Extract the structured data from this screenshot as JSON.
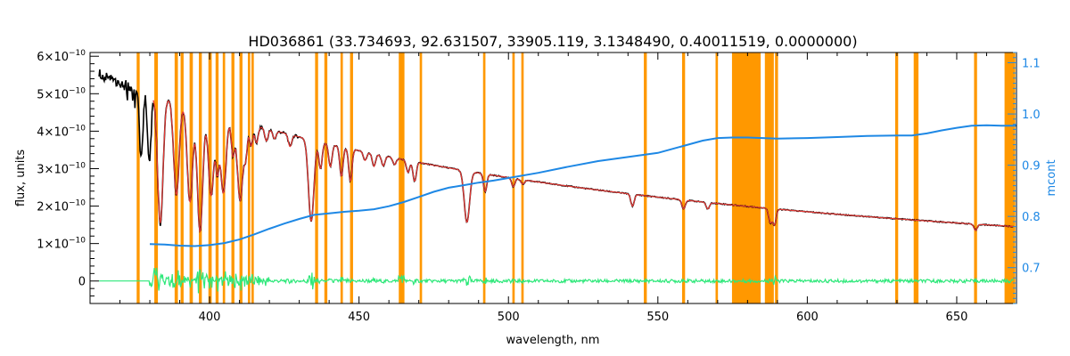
{
  "chart_data": {
    "type": "line",
    "title": "HD036861    (33.734693, 92.631507, 33905.119, 3.1348490, 0.40011519, 0.0000000)",
    "xlabel": "wavelength, nm",
    "ylabel": "flux, units",
    "y2label": "mcont",
    "xlim": [
      360,
      670
    ],
    "ylim": [
      -6e-11,
      6.1e-10
    ],
    "y2lim": [
      0.63,
      1.12
    ],
    "x_ticks": [
      {
        "v": 400,
        "label": "400"
      },
      {
        "v": 450,
        "label": "450"
      },
      {
        "v": 500,
        "label": "500"
      },
      {
        "v": 550,
        "label": "550"
      },
      {
        "v": 600,
        "label": "600"
      },
      {
        "v": 650,
        "label": "650"
      }
    ],
    "y_ticks": [
      {
        "v": 0,
        "mant": "0",
        "exp": ""
      },
      {
        "v": 1e-10,
        "mant": "1×10",
        "exp": "−10"
      },
      {
        "v": 2e-10,
        "mant": "2×10",
        "exp": "−10"
      },
      {
        "v": 3e-10,
        "mant": "3×10",
        "exp": "−10"
      },
      {
        "v": 4e-10,
        "mant": "4×10",
        "exp": "−10"
      },
      {
        "v": 5e-10,
        "mant": "5×10",
        "exp": "−10"
      },
      {
        "v": 6e-10,
        "mant": "6×10",
        "exp": "−10"
      }
    ],
    "y2_ticks": [
      {
        "v": 0.7,
        "label": "0.7"
      },
      {
        "v": 0.8,
        "label": "0.8"
      },
      {
        "v": 0.9,
        "label": "0.9"
      },
      {
        "v": 1.0,
        "label": "1.0"
      },
      {
        "v": 1.1,
        "label": "1.1"
      }
    ],
    "colors": {
      "observed": "#000000",
      "model": "#e53935",
      "residual": "#2ee87a",
      "mcont": "#1e88e5",
      "mask": "#ff9800",
      "highlight": "#ffe000"
    },
    "masks": [
      [
        375.6,
        376.6
      ],
      [
        381.5,
        382.7
      ],
      [
        388.3,
        389.4
      ],
      [
        390.3,
        391.3
      ],
      [
        393.3,
        394.4
      ],
      [
        396.4,
        397.4
      ],
      [
        399.6,
        400.7
      ],
      [
        402.0,
        403.0
      ],
      [
        404.4,
        405.2
      ],
      [
        407.3,
        408.3
      ],
      [
        410.0,
        411.0
      ],
      [
        412.8,
        413.6
      ],
      [
        414.0,
        414.8
      ],
      [
        435.3,
        436.3
      ],
      [
        438.4,
        439.4
      ],
      [
        443.8,
        444.6
      ],
      [
        447.0,
        448.0
      ],
      [
        463.3,
        465.2
      ],
      [
        470.3,
        471.1
      ],
      [
        491.5,
        492.3
      ],
      [
        501.3,
        502.1
      ],
      [
        504.3,
        505.1
      ],
      [
        545.3,
        546.3
      ],
      [
        558.1,
        559.1
      ],
      [
        569.3,
        570.1
      ],
      [
        574.8,
        584.4
      ],
      [
        585.8,
        588.8
      ],
      [
        589.2,
        590.2
      ],
      [
        629.4,
        630.4
      ],
      [
        635.6,
        637.2
      ],
      [
        655.8,
        656.8
      ],
      [
        666.0,
        669.6
      ]
    ],
    "lines": [
      {
        "x": 377.1,
        "d": 0.55
      },
      {
        "x": 379.8,
        "d": 0.6
      },
      {
        "x": 383.5,
        "d": 1.25
      },
      {
        "x": 388.9,
        "d": 0.95
      },
      {
        "x": 393.4,
        "d": 1.0
      },
      {
        "x": 396.8,
        "d": 1.3
      },
      {
        "x": 400.5,
        "d": 0.9
      },
      {
        "x": 402.6,
        "d": 0.55
      },
      {
        "x": 404.6,
        "d": 0.85
      },
      {
        "x": 407.8,
        "d": 0.4
      },
      {
        "x": 410.2,
        "d": 0.9
      },
      {
        "x": 412.1,
        "d": 0.35
      },
      {
        "x": 413.9,
        "d": 0.25
      },
      {
        "x": 415.7,
        "d": 0.2
      },
      {
        "x": 419.0,
        "d": 0.15
      },
      {
        "x": 421.7,
        "d": 0.1
      },
      {
        "x": 426.9,
        "d": 0.15
      },
      {
        "x": 434.0,
        "d": 1.05
      },
      {
        "x": 437.1,
        "d": 0.35
      },
      {
        "x": 440.4,
        "d": 0.3
      },
      {
        "x": 444.1,
        "d": 0.4
      },
      {
        "x": 447.1,
        "d": 0.45
      },
      {
        "x": 452.0,
        "d": 0.12
      },
      {
        "x": 455.0,
        "d": 0.18
      },
      {
        "x": 458.1,
        "d": 0.15
      },
      {
        "x": 461.9,
        "d": 0.1
      },
      {
        "x": 466.4,
        "d": 0.18
      },
      {
        "x": 468.6,
        "d": 0.3
      },
      {
        "x": 486.1,
        "d": 0.85
      },
      {
        "x": 492.2,
        "d": 0.3
      },
      {
        "x": 501.6,
        "d": 0.15
      },
      {
        "x": 504.8,
        "d": 0.08
      },
      {
        "x": 541.5,
        "d": 0.25
      },
      {
        "x": 558.6,
        "d": 0.2
      },
      {
        "x": 566.7,
        "d": 0.15
      },
      {
        "x": 587.6,
        "d": 0.35
      },
      {
        "x": 589.0,
        "d": 0.4
      },
      {
        "x": 656.3,
        "d": 0.2
      }
    ],
    "mcont": [
      {
        "x": 380,
        "y": 0.746
      },
      {
        "x": 385,
        "y": 0.745
      },
      {
        "x": 390,
        "y": 0.743
      },
      {
        "x": 395,
        "y": 0.742
      },
      {
        "x": 400,
        "y": 0.744
      },
      {
        "x": 405,
        "y": 0.748
      },
      {
        "x": 410,
        "y": 0.755
      },
      {
        "x": 415,
        "y": 0.765
      },
      {
        "x": 420,
        "y": 0.776
      },
      {
        "x": 425,
        "y": 0.786
      },
      {
        "x": 430,
        "y": 0.795
      },
      {
        "x": 435,
        "y": 0.803
      },
      {
        "x": 440,
        "y": 0.806
      },
      {
        "x": 445,
        "y": 0.809
      },
      {
        "x": 450,
        "y": 0.811
      },
      {
        "x": 455,
        "y": 0.814
      },
      {
        "x": 460,
        "y": 0.82
      },
      {
        "x": 465,
        "y": 0.828
      },
      {
        "x": 470,
        "y": 0.838
      },
      {
        "x": 475,
        "y": 0.848
      },
      {
        "x": 480,
        "y": 0.856
      },
      {
        "x": 485,
        "y": 0.861
      },
      {
        "x": 490,
        "y": 0.866
      },
      {
        "x": 495,
        "y": 0.87
      },
      {
        "x": 500,
        "y": 0.875
      },
      {
        "x": 510,
        "y": 0.885
      },
      {
        "x": 520,
        "y": 0.897
      },
      {
        "x": 530,
        "y": 0.908
      },
      {
        "x": 540,
        "y": 0.916
      },
      {
        "x": 550,
        "y": 0.924
      },
      {
        "x": 560,
        "y": 0.94
      },
      {
        "x": 565,
        "y": 0.948
      },
      {
        "x": 570,
        "y": 0.953
      },
      {
        "x": 575,
        "y": 0.954
      },
      {
        "x": 580,
        "y": 0.954
      },
      {
        "x": 585,
        "y": 0.953
      },
      {
        "x": 590,
        "y": 0.952
      },
      {
        "x": 600,
        "y": 0.953
      },
      {
        "x": 610,
        "y": 0.955
      },
      {
        "x": 620,
        "y": 0.957
      },
      {
        "x": 630,
        "y": 0.958
      },
      {
        "x": 635,
        "y": 0.958
      },
      {
        "x": 640,
        "y": 0.962
      },
      {
        "x": 645,
        "y": 0.968
      },
      {
        "x": 650,
        "y": 0.973
      },
      {
        "x": 655,
        "y": 0.977
      },
      {
        "x": 660,
        "y": 0.978
      },
      {
        "x": 665,
        "y": 0.977
      },
      {
        "x": 670,
        "y": 0.977
      }
    ]
  }
}
